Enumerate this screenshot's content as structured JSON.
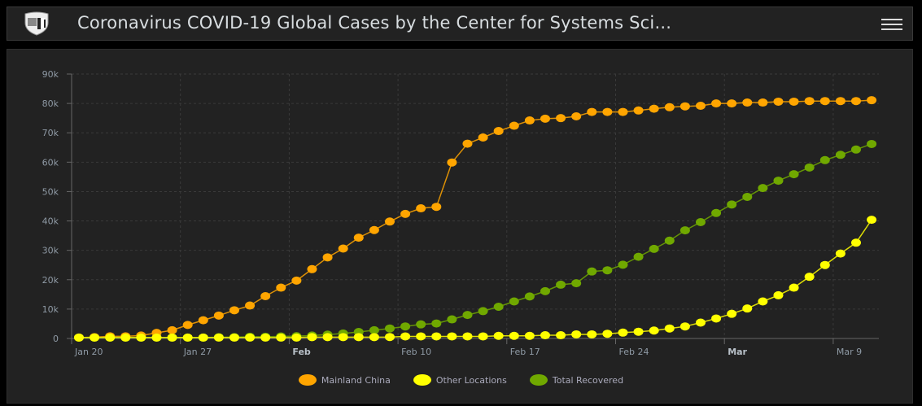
{
  "header": {
    "title": "Coronavirus COVID-19 Global Cases by the Center for Systems Sci..."
  },
  "chart_data": {
    "type": "line",
    "title": "",
    "xlabel": "",
    "ylabel": "",
    "x_start": "Jan 20",
    "x_unit": "day",
    "x_ticks": [
      {
        "day": 0,
        "label": "Jan 20",
        "bold": false
      },
      {
        "day": 7,
        "label": "Jan 27",
        "bold": false
      },
      {
        "day": 14,
        "label": "Feb",
        "bold": true
      },
      {
        "day": 21,
        "label": "Feb 10",
        "bold": false
      },
      {
        "day": 28,
        "label": "Feb 17",
        "bold": false
      },
      {
        "day": 35,
        "label": "Feb 24",
        "bold": false
      },
      {
        "day": 42,
        "label": "Mar",
        "bold": true
      },
      {
        "day": 49,
        "label": "Mar 9",
        "bold": false
      }
    ],
    "y_ticks": [
      {
        "v": 0,
        "label": "0"
      },
      {
        "v": 10000,
        "label": "10k"
      },
      {
        "v": 20000,
        "label": "20k"
      },
      {
        "v": 30000,
        "label": "30k"
      },
      {
        "v": 40000,
        "label": "40k"
      },
      {
        "v": 50000,
        "label": "50k"
      },
      {
        "v": 60000,
        "label": "60k"
      },
      {
        "v": 70000,
        "label": "70k"
      },
      {
        "v": 80000,
        "label": "80k"
      },
      {
        "v": 90000,
        "label": "90k"
      }
    ],
    "ylim": [
      0,
      90000
    ],
    "grid": true,
    "legend_position": "bottom",
    "series": [
      {
        "name": "Mainland China",
        "color": "#ffa500",
        "values": [
          300,
          460,
          740,
          740,
          1000,
          1900,
          2800,
          4600,
          6200,
          7800,
          9600,
          11200,
          14400,
          17300,
          19700,
          23600,
          27600,
          30600,
          34300,
          36900,
          39800,
          42400,
          44300,
          44800,
          59900,
          66300,
          68400,
          70600,
          72400,
          74200,
          74800,
          75000,
          75600,
          77100,
          77100,
          77100,
          77600,
          78200,
          78700,
          79000,
          79200,
          80000,
          80000,
          80300,
          80300,
          80600,
          80600,
          80800,
          80800,
          80800,
          80800,
          81100
        ]
      },
      {
        "name": "Other Locations",
        "color": "#ffff00",
        "values": [
          300,
          300,
          300,
          300,
          300,
          300,
          300,
          300,
          300,
          300,
          300,
          300,
          300,
          300,
          300,
          460,
          460,
          460,
          460,
          460,
          500,
          700,
          700,
          700,
          700,
          700,
          700,
          900,
          900,
          900,
          1100,
          1100,
          1400,
          1400,
          1600,
          2000,
          2300,
          2700,
          3400,
          4100,
          5400,
          6800,
          8400,
          10200,
          12600,
          14700,
          17300,
          21000,
          25000,
          28900,
          32600,
          40400
        ]
      },
      {
        "name": "Total Recovered",
        "color": "#70a800",
        "values": [
          300,
          300,
          300,
          300,
          300,
          300,
          300,
          300,
          300,
          460,
          460,
          600,
          600,
          700,
          800,
          1000,
          1300,
          1700,
          2200,
          2800,
          3400,
          4100,
          4800,
          5100,
          6500,
          8000,
          9300,
          10800,
          12600,
          14300,
          16100,
          18300,
          18800,
          22800,
          23200,
          25100,
          27800,
          30500,
          33300,
          36800,
          39600,
          42700,
          45600,
          48200,
          51200,
          53700,
          55900,
          58200,
          60700,
          62500,
          64300,
          66200
        ]
      }
    ]
  }
}
